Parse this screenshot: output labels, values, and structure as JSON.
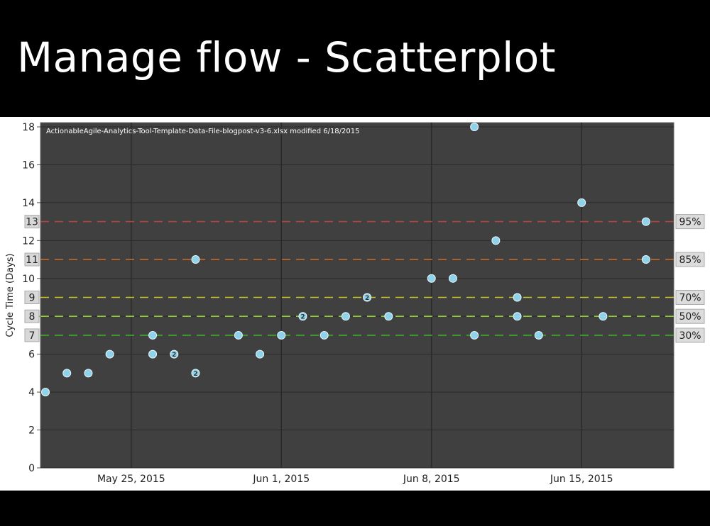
{
  "slide": {
    "title": "Manage flow - Scatterplot"
  },
  "chart_data": {
    "type": "scatter",
    "annotation": "ActionableAgile-Analytics-Tool-Template-Data-File-blogpost-v3-6.xlsx modified 6/18/2015",
    "ylabel": "Cycle Time (Days)",
    "xlabel": "",
    "ylim": [
      0,
      18
    ],
    "xlim": [
      "2015-05-21",
      "2015-06-19"
    ],
    "y_ticks": [
      0,
      2,
      4,
      6,
      8,
      10,
      12,
      14,
      16,
      18
    ],
    "x_ticks": [
      {
        "date": "2015-05-25",
        "label": "May 25, 2015"
      },
      {
        "date": "2015-06-01",
        "label": "Jun 1, 2015"
      },
      {
        "date": "2015-06-08",
        "label": "Jun 8, 2015"
      },
      {
        "date": "2015-06-15",
        "label": "Jun 15, 2015"
      }
    ],
    "grid": true,
    "percentiles": [
      {
        "value": 13,
        "label": "95%",
        "color": "#b0463a"
      },
      {
        "value": 11,
        "label": "85%",
        "color": "#c06a2a"
      },
      {
        "value": 9,
        "label": "70%",
        "color": "#c9c420"
      },
      {
        "value": 8,
        "label": "50%",
        "color": "#8fcf2a"
      },
      {
        "value": 7,
        "label": "30%",
        "color": "#3fae2a"
      }
    ],
    "point_color": "#8fd3ea",
    "points": [
      {
        "x": "2015-05-21",
        "y": 4
      },
      {
        "x": "2015-05-22",
        "y": 5
      },
      {
        "x": "2015-05-23",
        "y": 5
      },
      {
        "x": "2015-05-24",
        "y": 6
      },
      {
        "x": "2015-05-26",
        "y": 7
      },
      {
        "x": "2015-05-26",
        "y": 6
      },
      {
        "x": "2015-05-27",
        "y": 6,
        "count": "2"
      },
      {
        "x": "2015-05-28",
        "y": 11
      },
      {
        "x": "2015-05-28",
        "y": 5,
        "count": "2"
      },
      {
        "x": "2015-05-30",
        "y": 7
      },
      {
        "x": "2015-05-31",
        "y": 6
      },
      {
        "x": "2015-06-01",
        "y": 7
      },
      {
        "x": "2015-06-02",
        "y": 8,
        "count": "2"
      },
      {
        "x": "2015-06-03",
        "y": 7
      },
      {
        "x": "2015-06-04",
        "y": 8
      },
      {
        "x": "2015-06-05",
        "y": 9,
        "count": "2"
      },
      {
        "x": "2015-06-06",
        "y": 8
      },
      {
        "x": "2015-06-08",
        "y": 10
      },
      {
        "x": "2015-06-09",
        "y": 10
      },
      {
        "x": "2015-06-10",
        "y": 18
      },
      {
        "x": "2015-06-10",
        "y": 7
      },
      {
        "x": "2015-06-11",
        "y": 12
      },
      {
        "x": "2015-06-12",
        "y": 9
      },
      {
        "x": "2015-06-12",
        "y": 8
      },
      {
        "x": "2015-06-13",
        "y": 7
      },
      {
        "x": "2015-06-15",
        "y": 14
      },
      {
        "x": "2015-06-16",
        "y": 8
      },
      {
        "x": "2015-06-18",
        "y": 13
      },
      {
        "x": "2015-06-18",
        "y": 11
      }
    ]
  }
}
